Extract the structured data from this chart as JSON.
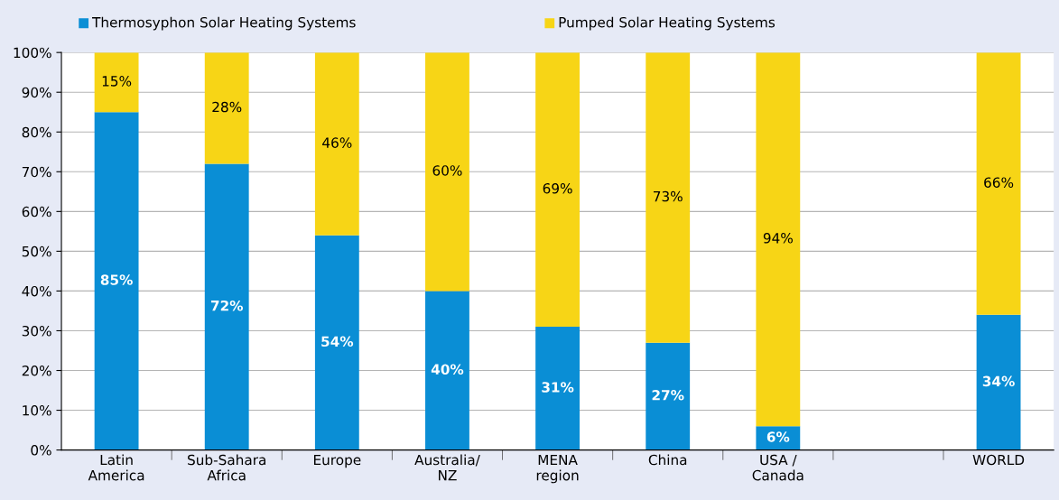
{
  "chart_data": {
    "type": "bar",
    "stacked": true,
    "categories": [
      "Latin\nAmerica",
      "Sub-Sahara\nAfrica",
      "Europe",
      "Australia/\nNZ",
      "MENA\nregion",
      "China",
      "USA /\nCanada",
      null,
      "WORLD"
    ],
    "series": [
      {
        "name": "Thermosyphon Solar Heating Systems",
        "color": "#0a8ed5",
        "values": [
          85,
          72,
          54,
          40,
          31,
          27,
          6,
          null,
          34
        ],
        "value_labels": [
          "85%",
          "72%",
          "54%",
          "40%",
          "31%",
          "27%",
          "6%",
          null,
          "34%"
        ]
      },
      {
        "name": "Pumped Solar Heating Systems",
        "color": "#f7d516",
        "values": [
          15,
          28,
          46,
          60,
          69,
          73,
          94,
          null,
          66
        ],
        "value_labels": [
          "15%",
          "28%",
          "46%",
          "60%",
          "69%",
          "73%",
          "94%",
          null,
          "66%"
        ]
      }
    ],
    "ylim": [
      0,
      100
    ],
    "yticks": [
      {
        "value": 0,
        "label": "0%"
      },
      {
        "value": 10,
        "label": "10%"
      },
      {
        "value": 20,
        "label": "20%"
      },
      {
        "value": 30,
        "label": "30%"
      },
      {
        "value": 40,
        "label": "40%"
      },
      {
        "value": 50,
        "label": "50%"
      },
      {
        "value": 60,
        "label": "60%"
      },
      {
        "value": 70,
        "label": "70%"
      },
      {
        "value": 80,
        "label": "80%"
      },
      {
        "value": 90,
        "label": "90%"
      },
      {
        "value": 100,
        "label": "100%"
      }
    ],
    "grid": "y",
    "legend": "top"
  }
}
